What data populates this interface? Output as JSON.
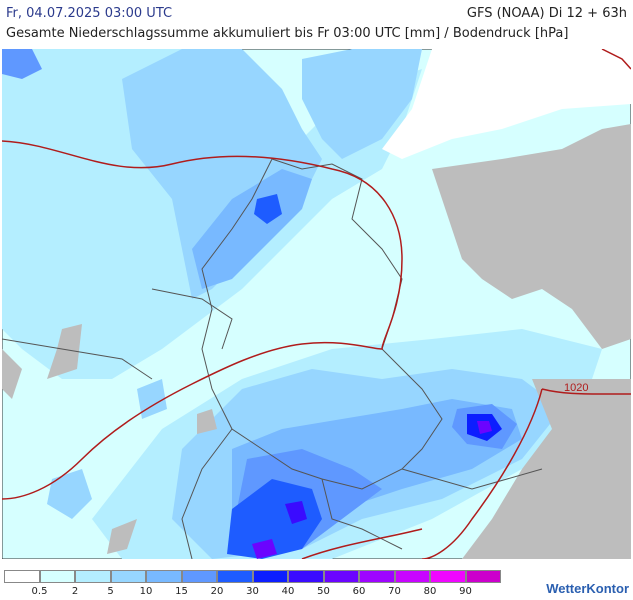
{
  "header": {
    "datetime": "Fr, 04.07.2025 03:00 UTC",
    "model": "GFS (NOAA) Di 12 + 63h",
    "subtitle": "Gesamte Niederschlagssumme akkumuliert bis Fr 03:00 UTC [mm] / Bodendruck [hPa]"
  },
  "map": {
    "isobar_label": "1020",
    "isobar_color": "#b01c1c",
    "sea_color": "#ffffff",
    "land_outside_color": "#bdbdbd"
  },
  "legend": {
    "colors": [
      "#ffffff",
      "#d6ffff",
      "#b4eeff",
      "#97d6ff",
      "#78b9ff",
      "#5f98ff",
      "#1e5cff",
      "#0c1eff",
      "#3a0bff",
      "#6b04ff",
      "#9e04ff",
      "#c804ff",
      "#f006ff",
      "#cc00cc"
    ],
    "labels": [
      "0.5",
      "2",
      "5",
      "10",
      "15",
      "20",
      "30",
      "40",
      "50",
      "60",
      "70",
      "80",
      "90"
    ]
  },
  "brand": "WetterKontor"
}
